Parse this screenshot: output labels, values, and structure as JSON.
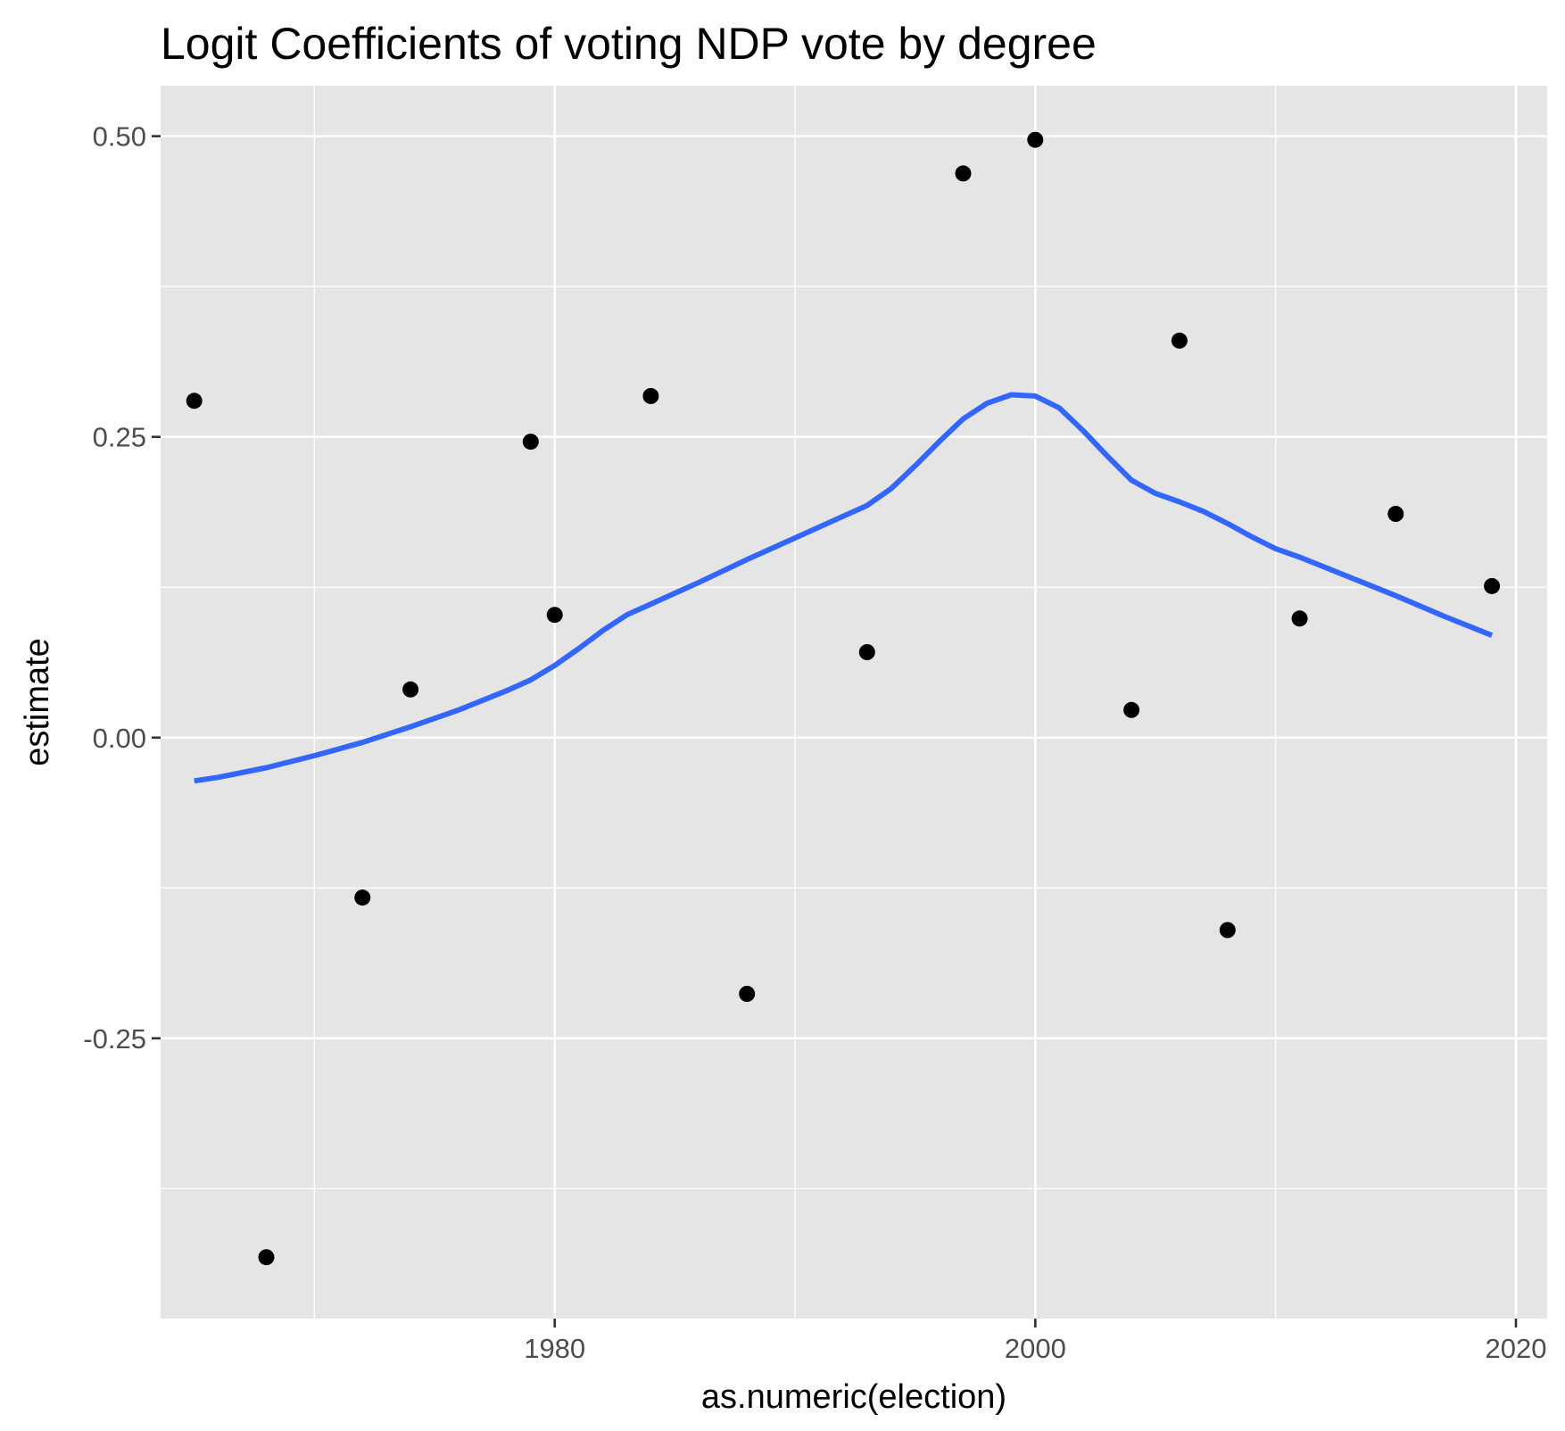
{
  "chart_data": {
    "type": "scatter",
    "title": "Logit Coefficients of voting NDP vote by degree",
    "xlabel": "as.numeric(election)",
    "ylabel": "estimate",
    "xlim": [
      1963.6,
      2021.3
    ],
    "ylim": [
      -0.483,
      0.542
    ],
    "x_ticks": [
      {
        "value": 1980,
        "label": "1980"
      },
      {
        "value": 2000,
        "label": "2000"
      },
      {
        "value": 2020,
        "label": "2020"
      }
    ],
    "x_minor_ticks": [
      1970,
      1990,
      2010
    ],
    "y_ticks": [
      {
        "value": -0.25,
        "label": "-0.25"
      },
      {
        "value": 0.0,
        "label": "0.00"
      },
      {
        "value": 0.25,
        "label": "0.25"
      },
      {
        "value": 0.5,
        "label": "0.50"
      }
    ],
    "y_minor_ticks": [
      -0.375,
      -0.125,
      0.125,
      0.375
    ],
    "grid": true,
    "colors": {
      "panel_background": "#e5e5e5",
      "grid": "#ffffff",
      "points": "#000000",
      "smooth_line": "#3366ff"
    },
    "series": [
      {
        "type": "points",
        "x": [
          1965,
          1968,
          1972,
          1974,
          1979,
          1980,
          1984,
          1988,
          1993,
          1997,
          2000,
          2004,
          2006,
          2008,
          2011,
          2015,
          2019
        ],
        "y": [
          0.28,
          -0.432,
          -0.133,
          0.04,
          0.246,
          0.102,
          0.284,
          -0.213,
          0.071,
          0.469,
          0.497,
          0.023,
          0.33,
          -0.16,
          0.099,
          0.186,
          0.126
        ]
      },
      {
        "type": "smooth",
        "x": [
          1965,
          1966,
          1968,
          1970,
          1972,
          1974,
          1976,
          1978,
          1979,
          1980,
          1981,
          1982,
          1983,
          1984,
          1986,
          1988,
          1990,
          1992,
          1993,
          1994,
          1995,
          1996,
          1997,
          1998,
          1999,
          2000,
          2001,
          2002,
          2003,
          2004,
          2005,
          2006,
          2007,
          2008,
          2009,
          2010,
          2011,
          2013,
          2015,
          2017,
          2019
        ],
        "y": [
          -0.036,
          -0.033,
          -0.025,
          -0.015,
          -0.004,
          0.009,
          0.023,
          0.039,
          0.048,
          0.06,
          0.074,
          0.089,
          0.102,
          0.111,
          0.129,
          0.148,
          0.166,
          0.184,
          0.193,
          0.207,
          0.226,
          0.246,
          0.265,
          0.278,
          0.285,
          0.284,
          0.274,
          0.255,
          0.234,
          0.214,
          0.203,
          0.196,
          0.188,
          0.178,
          0.167,
          0.157,
          0.15,
          0.134,
          0.118,
          0.101,
          0.085
        ]
      }
    ]
  }
}
